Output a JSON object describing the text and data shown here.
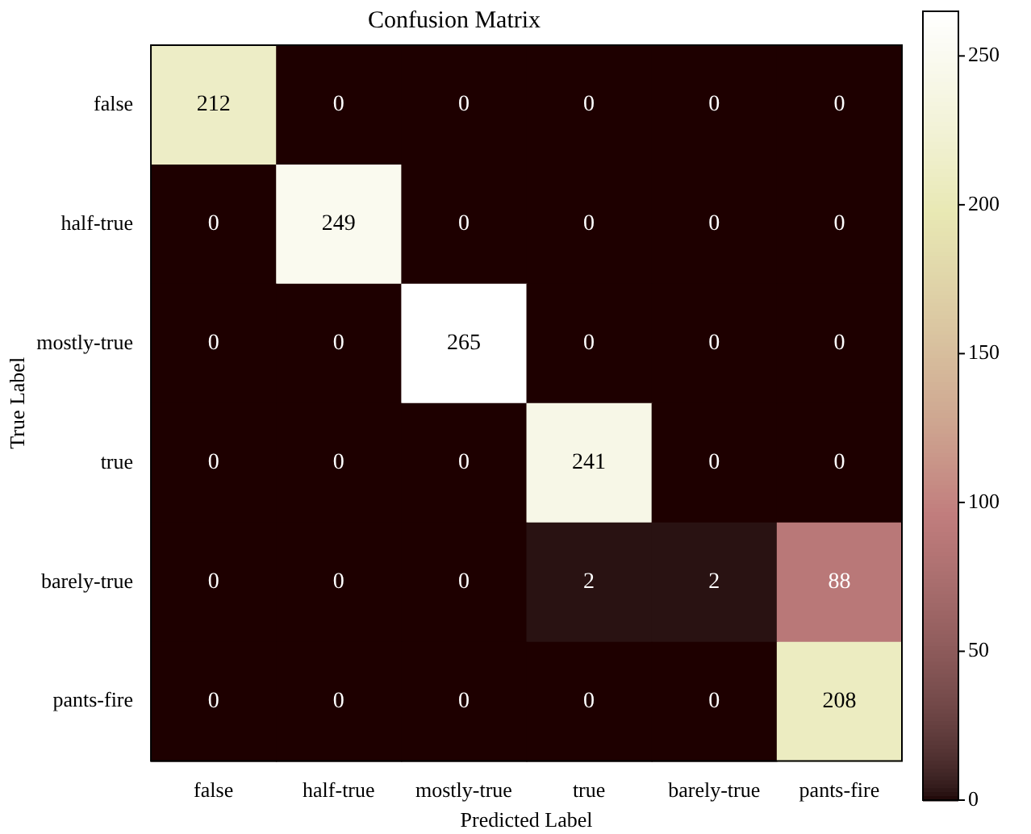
{
  "chart_data": {
    "type": "heatmap",
    "title": "Confusion Matrix",
    "xlabel": "Predicted Label",
    "ylabel": "True Label",
    "categories": [
      "false",
      "half-true",
      "mostly-true",
      "true",
      "barely-true",
      "pants-fire"
    ],
    "y_categories": [
      "false",
      "half-true",
      "mostly-true",
      "true",
      "barely-true",
      "pants-fire"
    ],
    "cells": [
      [
        212,
        0,
        0,
        0,
        0,
        0
      ],
      [
        0,
        249,
        0,
        0,
        0,
        0
      ],
      [
        0,
        0,
        265,
        0,
        0,
        0
      ],
      [
        0,
        0,
        0,
        241,
        0,
        0
      ],
      [
        0,
        0,
        0,
        2,
        2,
        88
      ],
      [
        0,
        0,
        0,
        0,
        0,
        208
      ]
    ],
    "data_labels": true,
    "clim": [
      0,
      265
    ],
    "cticks": [
      0,
      50,
      100,
      150,
      200,
      250
    ]
  }
}
